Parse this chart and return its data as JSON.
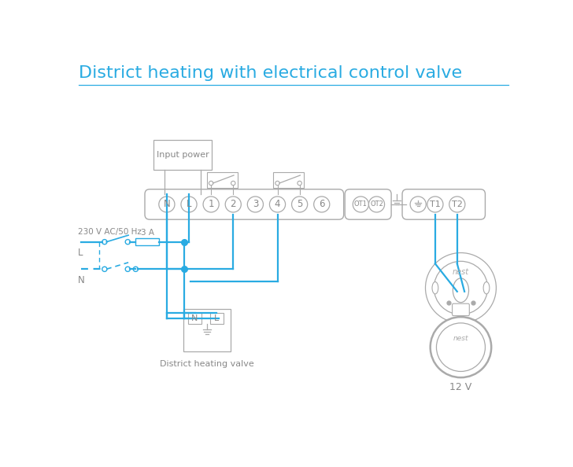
{
  "title": "District heating with electrical control valve",
  "title_color": "#29abe2",
  "title_fontsize": 16,
  "bg_color": "#ffffff",
  "wire_color": "#29abe2",
  "gray": "#aaaaaa",
  "dark_gray": "#888888",
  "text_color": "#888888",
  "terminal_labels": [
    "N",
    "L",
    "1",
    "2",
    "3",
    "4",
    "5",
    "6"
  ],
  "ot_labels": [
    "OT1",
    "OT2"
  ],
  "right_labels": [
    "T1",
    "T2"
  ],
  "fuse_label": "3 A",
  "voltage_label": "230 V AC/50 Hz",
  "L_label": "L",
  "N_label": "N",
  "input_power_label": "Input power",
  "valve_label": "District heating valve",
  "nest_label": "12 V"
}
